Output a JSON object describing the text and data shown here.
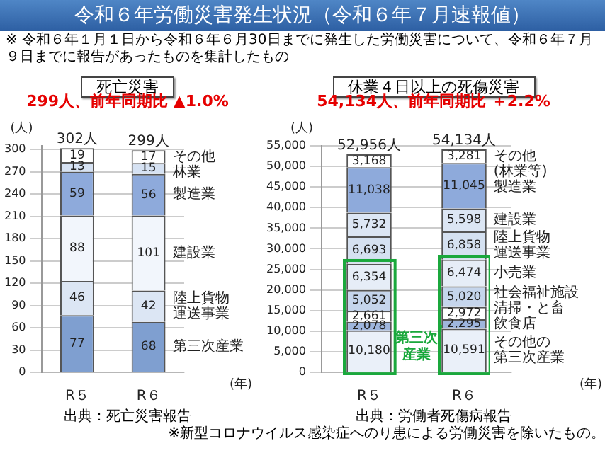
{
  "chart_data": [
    {
      "type": "other",
      "title": "令和６年労働災害発生状況（令和６年７月速報値）",
      "annotations": [
        "※ 令和６年１月１日から令和６年６月30日までに発生した労働災害について、令和６年７月９日までに報告があったものを集計したもの"
      ]
    },
    {
      "type": "bar",
      "title": "死亡災害",
      "subtitle": "299人、前年同期比 ▲1.0%",
      "ylabel": "(人)",
      "xlabel": "(年)",
      "categories": [
        "R５",
        "R６"
      ],
      "stacked": true,
      "data_labels": true,
      "legend": false,
      "grid": "y",
      "ylim": [
        0,
        305
      ],
      "yticks": [
        0,
        30,
        60,
        90,
        120,
        150,
        180,
        210,
        240,
        270,
        300
      ],
      "totals": [
        "302人",
        "299人"
      ],
      "annotations": [
        "出典：死亡災害報告"
      ],
      "series": [
        {
          "name": "第三次産業",
          "color": "#7f9fd0",
          "values": [
            77,
            68
          ]
        },
        {
          "name": "陸上貨物運送事業",
          "color": "#dce6f4",
          "values": [
            46,
            42
          ]
        },
        {
          "name": "建設業",
          "color": "#f2f6fc",
          "values": [
            88,
            101
          ]
        },
        {
          "name": "製造業",
          "color": "#8eaadb",
          "values": [
            59,
            56
          ]
        },
        {
          "name": "林業",
          "color": "#d6e2f3",
          "values": [
            13,
            15
          ]
        },
        {
          "name": "その他",
          "color": "#ffffff",
          "values": [
            19,
            17
          ]
        }
      ]
    },
    {
      "type": "bar",
      "title": "休業４日以上の死傷災害",
      "subtitle": "54,134人、前年同期比 ＋2.2%",
      "ylabel": "(人)",
      "xlabel": "(年)",
      "categories": [
        "R５",
        "R６"
      ],
      "stacked": true,
      "legend": false,
      "grid": "y",
      "ylim": [
        0,
        55000
      ],
      "yticks": [
        {
          "value": 0,
          "label": "0"
        },
        {
          "value": 5000,
          "label": "5,000"
        },
        {
          "value": 10000,
          "label": "10,000"
        },
        {
          "value": 15000,
          "label": "15,000"
        },
        {
          "value": 20000,
          "label": "20,000"
        },
        {
          "value": 25000,
          "label": "25,000"
        },
        {
          "value": 30000,
          "label": "30,000"
        },
        {
          "value": 35000,
          "label": "35,000"
        },
        {
          "value": 40000,
          "label": "40,000"
        },
        {
          "value": 45000,
          "label": "45,000"
        },
        {
          "value": 50000,
          "label": "50,000"
        },
        {
          "value": 55000,
          "label": "55,000"
        }
      ],
      "totals": [
        "52,956人",
        "54,134人"
      ],
      "annotations": [
        "出典：労働者死傷病報告",
        "※新型コロナウイルス感染症へのり患による労働災害を除いたもの。",
        "第三次産業"
      ],
      "series": [
        {
          "name": "その他の第三次産業",
          "color": "#eaf0f9",
          "values": [
            10180,
            10591
          ],
          "value_labels": [
            "10,180",
            "10,591"
          ]
        },
        {
          "name": "飲食店",
          "color": "#9fb6dd",
          "values": [
            2078,
            2295
          ],
          "value_labels": [
            "2,078",
            "2,295"
          ]
        },
        {
          "name": "清掃・と畜",
          "color": "#ffffff",
          "values": [
            2661,
            2972
          ],
          "value_labels": [
            "2,661",
            "2,972"
          ]
        },
        {
          "name": "社会福祉施設",
          "color": "#c5d5ec",
          "values": [
            5052,
            5020
          ],
          "value_labels": [
            "5,052",
            "5,020"
          ]
        },
        {
          "name": "小売業",
          "color": "#e6edf7",
          "values": [
            6354,
            6474
          ],
          "value_labels": [
            "6,354",
            "6,474"
          ]
        },
        {
          "name": "陸上貨物運送事業",
          "color": "#d5e1f1",
          "values": [
            6693,
            6858
          ],
          "value_labels": [
            "6,693",
            "6,858"
          ]
        },
        {
          "name": "建設業",
          "color": "#dce6f4",
          "values": [
            5732,
            5598
          ],
          "value_labels": [
            "5,732",
            "5,598"
          ]
        },
        {
          "name": "製造業",
          "color": "#8eaadb",
          "values": [
            11038,
            11045
          ],
          "value_labels": [
            "11,038",
            "11,045"
          ]
        },
        {
          "name": "その他(林業等)",
          "color": "#ffffff",
          "values": [
            3168,
            3281
          ],
          "value_labels": [
            "3,168",
            "3,281"
          ]
        }
      ]
    }
  ]
}
